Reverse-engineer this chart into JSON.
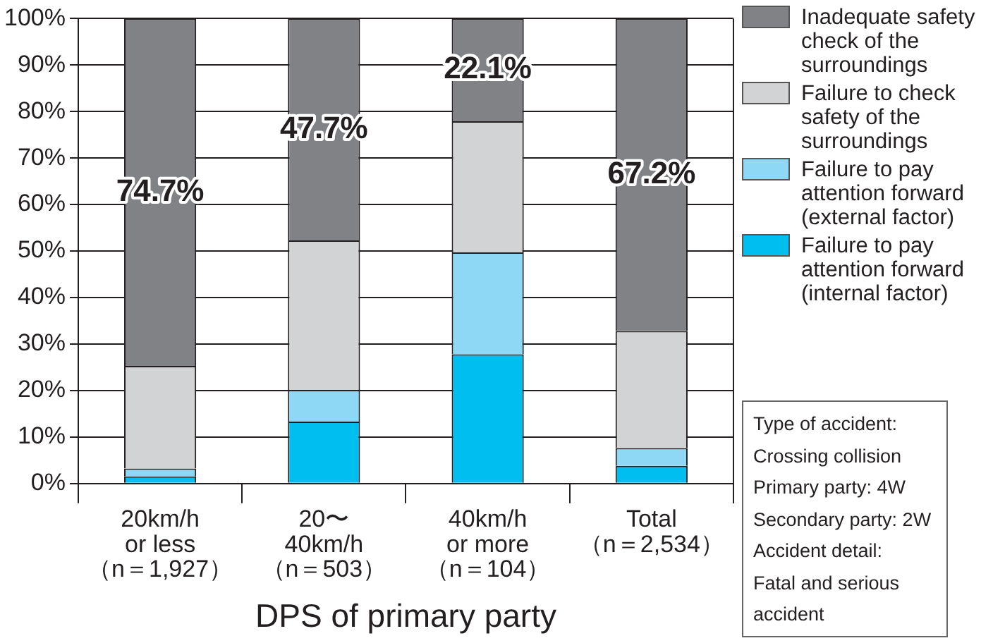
{
  "chart_data": {
    "type": "bar",
    "stacked": true,
    "xlabel": "DPS of primary party",
    "categories": [
      "20km/h\nor less\n（n＝1,927）",
      "20〜\n40km/h\n（n＝503）",
      "40km/h\nor more\n（n＝104）",
      "Total\n（n＝2,534）"
    ],
    "series": [
      {
        "name": "Failure to pay attention forward (internal factor)",
        "color": "#00bef0",
        "values": [
          1.5,
          13.3,
          27.8,
          3.8
        ]
      },
      {
        "name": "Failure to pay attention forward (external factor)",
        "color": "#8fd8f5",
        "values": [
          1.7,
          6.8,
          21.9,
          3.8
        ]
      },
      {
        "name": "Failure to check safety of the surroundings",
        "color": "#d2d3d5",
        "values": [
          22.1,
          32.2,
          28.2,
          25.2
        ]
      },
      {
        "name": "Inadequate safety check of the surroundings",
        "color": "#808285",
        "values": [
          74.7,
          47.7,
          22.1,
          67.2
        ],
        "value_labels": [
          "74.7%",
          "47.7%",
          "22.1%",
          "67.2%"
        ]
      }
    ],
    "ylim": [
      0,
      100
    ],
    "yticks": [
      {
        "value": 0,
        "label": "0%"
      },
      {
        "value": 10,
        "label": "10%"
      },
      {
        "value": 20,
        "label": "20%"
      },
      {
        "value": 30,
        "label": "30%"
      },
      {
        "value": 40,
        "label": "40%"
      },
      {
        "value": 50,
        "label": "50%"
      },
      {
        "value": 60,
        "label": "60%"
      },
      {
        "value": 70,
        "label": "70%"
      },
      {
        "value": 80,
        "label": "80%"
      },
      {
        "value": 90,
        "label": "90%"
      },
      {
        "value": 100,
        "label": "100%"
      }
    ],
    "grid": "y",
    "legend": "top right",
    "annotations": [
      "Type of accident:\nCrossing collision\nPrimary party: 4W\nSecondary party: 2W\nAccident detail:\nFatal and serious\naccident"
    ]
  }
}
